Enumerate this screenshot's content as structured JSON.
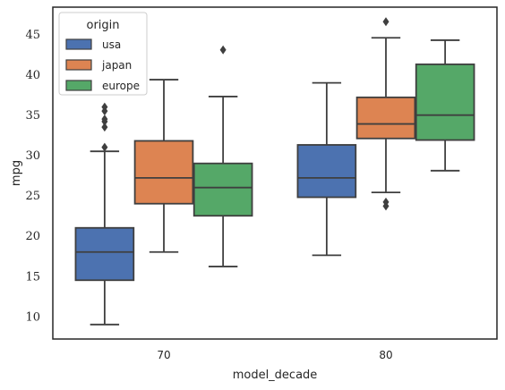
{
  "chart_data": {
    "type": "box",
    "title": "",
    "xlabel": "model_decade",
    "ylabel": "mpg",
    "categories": [
      "70",
      "80"
    ],
    "ylim": [
      7.2,
      48.4
    ],
    "yticks": [
      "10",
      "15",
      "20",
      "25",
      "30",
      "35",
      "40",
      "45"
    ],
    "grid": false,
    "legend": {
      "title": "origin",
      "position": "top-left"
    },
    "series": [
      {
        "name": "usa",
        "color": "#4c72b0",
        "boxes": [
          {
            "whislo": 9.0,
            "q1": 14.5,
            "med": 18.0,
            "q3": 21.0,
            "whishi": 30.5,
            "fliers": [
              31.0,
              33.5,
              34.2,
              34.5,
              35.5,
              36.0
            ]
          },
          {
            "whislo": 17.6,
            "q1": 24.8,
            "med": 27.2,
            "q3": 31.3,
            "whishi": 39.0,
            "fliers": []
          }
        ]
      },
      {
        "name": "japan",
        "color": "#dd8452",
        "boxes": [
          {
            "whislo": 18.0,
            "q1": 24.0,
            "med": 27.2,
            "q3": 31.8,
            "whishi": 39.4,
            "fliers": []
          },
          {
            "whislo": 25.4,
            "q1": 32.1,
            "med": 33.9,
            "q3": 37.2,
            "whishi": 44.6,
            "fliers": [
              23.7,
              24.2,
              46.6
            ]
          }
        ]
      },
      {
        "name": "europe",
        "color": "#55a868",
        "boxes": [
          {
            "whislo": 16.2,
            "q1": 22.5,
            "med": 26.0,
            "q3": 29.0,
            "whishi": 37.3,
            "fliers": [
              43.1
            ]
          },
          {
            "whislo": 28.1,
            "q1": 31.9,
            "med": 35.0,
            "q3": 41.3,
            "whishi": 44.3,
            "fliers": []
          }
        ]
      }
    ]
  }
}
